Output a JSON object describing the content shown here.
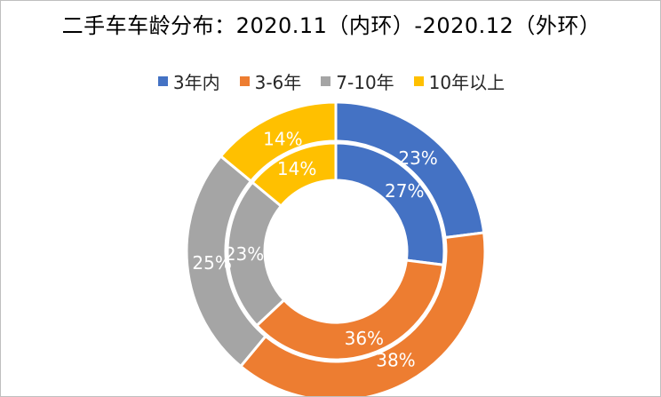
{
  "chart_data": {
    "type": "pie",
    "subtype": "doughnut",
    "title": "二手车车龄分布：2020.11（内环）-2020.12（外环）",
    "categories": [
      "3年内",
      "3-6年",
      "7-10年",
      "10年以上"
    ],
    "colors": [
      "#4472C4",
      "#ED7D31",
      "#A5A5A5",
      "#FFC000"
    ],
    "legend_position": "top",
    "series": [
      {
        "ring": "outer",
        "values": [
          23,
          38,
          25,
          14
        ],
        "labels": [
          "23%",
          "38%",
          "25%",
          "14%"
        ]
      },
      {
        "ring": "inner",
        "values": [
          27,
          36,
          23,
          14
        ],
        "labels": [
          "27%",
          "36%",
          "23%",
          "14%"
        ]
      }
    ]
  }
}
